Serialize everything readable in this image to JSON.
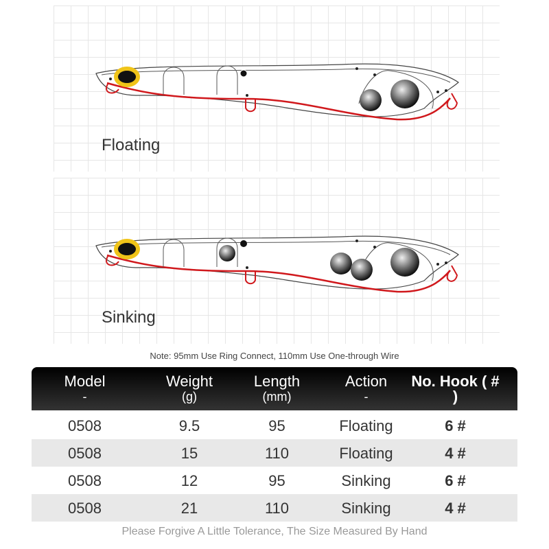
{
  "panels": [
    {
      "label": "Floating",
      "balls": 2
    },
    {
      "label": "Sinking",
      "balls": 4
    }
  ],
  "note": "Note: 95mm Use Ring Connect, 110mm Use One-through Wire",
  "table": {
    "headers": [
      {
        "main": "Model",
        "sub": "-"
      },
      {
        "main": "Weight",
        "sub": "(g)"
      },
      {
        "main": "Length",
        "sub": "(mm)"
      },
      {
        "main": "Action",
        "sub": "-"
      },
      {
        "main": "No. Hook ( #",
        "sub": ")"
      }
    ],
    "rows": [
      [
        "0508",
        "9.5",
        "95",
        "Floating",
        "6 #"
      ],
      [
        "0508",
        "15",
        "110",
        "Floating",
        "4 #"
      ],
      [
        "0508",
        "12",
        "95",
        "Sinking",
        "6 #"
      ],
      [
        "0508",
        "21",
        "110",
        "Sinking",
        "4 #"
      ]
    ]
  },
  "footer": "Please Forgive A Little Tolerance, The Size Measured By Hand",
  "colors": {
    "wire": "#d0181c",
    "eye": "#f0c419",
    "header": "#111111"
  }
}
